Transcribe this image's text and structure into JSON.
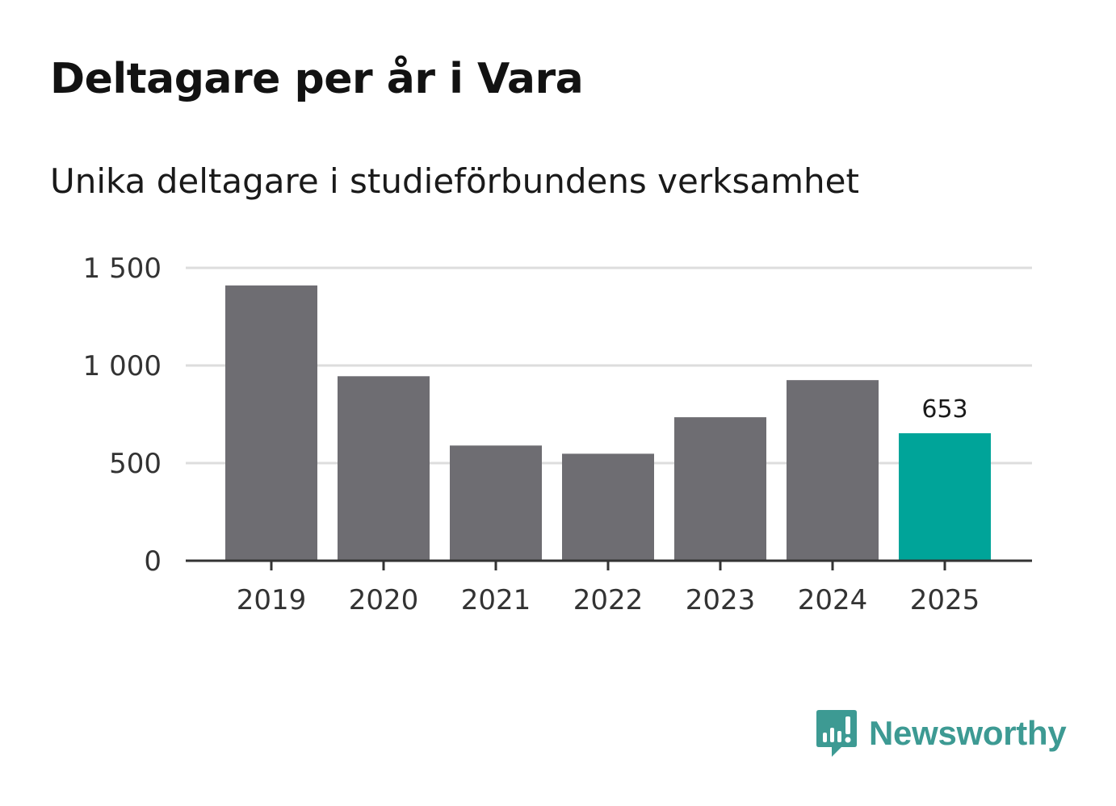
{
  "title": "Deltagare per år i Vara",
  "subtitle": "Unika deltagare i studieförbundens verksamhet",
  "brand": {
    "name": "Newsworthy",
    "color": "#3d9a93",
    "icon": "newsworthy-logo-icon"
  },
  "colors": {
    "bar": "#6e6d72",
    "highlight": "#00a499",
    "grid": "#dddddd",
    "axis": "#333333"
  },
  "chart_data": {
    "type": "bar",
    "title": "Deltagare per år i Vara",
    "subtitle": "Unika deltagare i studieförbundens verksamhet",
    "xlabel": "",
    "ylabel": "",
    "categories": [
      "2019",
      "2020",
      "2021",
      "2022",
      "2023",
      "2024",
      "2025"
    ],
    "values": [
      1410,
      945,
      590,
      548,
      735,
      925,
      653
    ],
    "highlight_index": 6,
    "data_labels": [
      {
        "index": 6,
        "text": "653"
      }
    ],
    "ylim": [
      0,
      1500
    ],
    "yticks": [
      0,
      500,
      1000,
      1500
    ],
    "ytick_labels": [
      "0",
      "500",
      "1 000",
      "1 500"
    ],
    "grid": true,
    "legend": "none"
  }
}
